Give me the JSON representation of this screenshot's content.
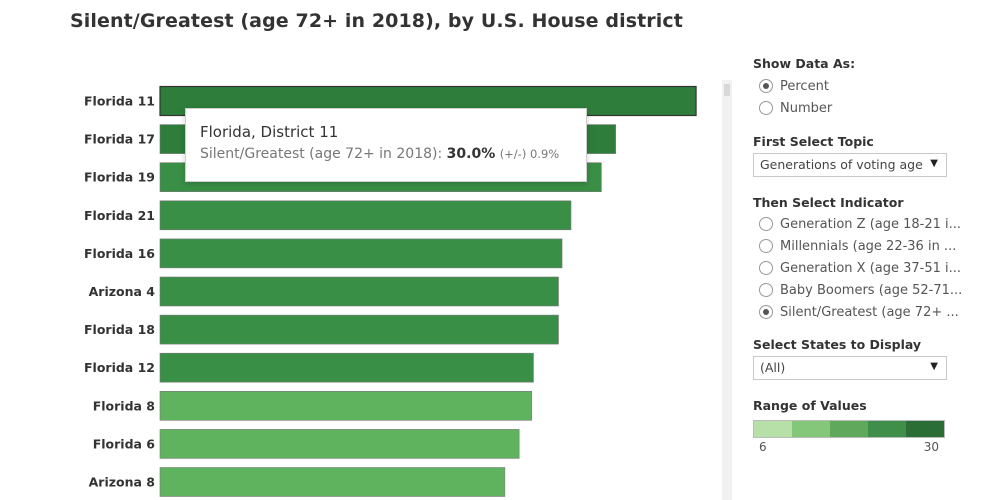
{
  "title": "Silent/Greatest (age 72+ in 2018), by U.S. House district",
  "chart_data": {
    "type": "bar",
    "orientation": "horizontal",
    "title": "Silent/Greatest (age 72+ in 2018), by U.S. House district",
    "categories": [
      "Florida 11",
      "Florida 17",
      "Florida 19",
      "Florida 21",
      "Florida 16",
      "Arizona 4",
      "Florida 18",
      "Florida 12",
      "Florida 8",
      "Florida 6",
      "Arizona 8"
    ],
    "values": [
      30.0,
      25.5,
      24.7,
      23.0,
      22.5,
      22.3,
      22.3,
      20.9,
      20.8,
      20.1,
      19.3
    ],
    "colors": [
      "#2e7d3a",
      "#2e7d3a",
      "#3a8f46",
      "#3a8f46",
      "#3a8f46",
      "#3a8f46",
      "#3a8f46",
      "#3a8f46",
      "#5fb35f",
      "#5fb35f",
      "#5fb35f"
    ],
    "xlim": [
      0,
      30.5
    ],
    "unit": "%"
  },
  "tooltip": {
    "title": "Florida, District 11",
    "label": "Silent/Greatest (age 72+ in 2018):",
    "value": "30.0%",
    "moe": "(+/-) 0.9%"
  },
  "controls": {
    "show_data_as": {
      "heading": "Show Data As:",
      "options": [
        "Percent",
        "Number"
      ],
      "selected": "Percent"
    },
    "topic": {
      "heading": "First Select Topic",
      "value": "Generations of voting age"
    },
    "indicator": {
      "heading": "Then Select Indicator",
      "options": [
        "Generation Z (age 18-21 i...",
        "Millennials (age 22-36 in ...",
        "Generation X (age 37-51 i...",
        "Baby Boomers (age 52-71...",
        "Silent/Greatest (age 72+ ..."
      ],
      "selected": "Silent/Greatest (age 72+ ..."
    },
    "states": {
      "heading": "Select States to Display",
      "value": "(All)"
    },
    "range": {
      "heading": "Range of Values",
      "min": "6",
      "max": "30",
      "colors": [
        "#b7e0a8",
        "#85c77a",
        "#5fa85c",
        "#3f8f4a",
        "#2a6e35"
      ]
    }
  }
}
